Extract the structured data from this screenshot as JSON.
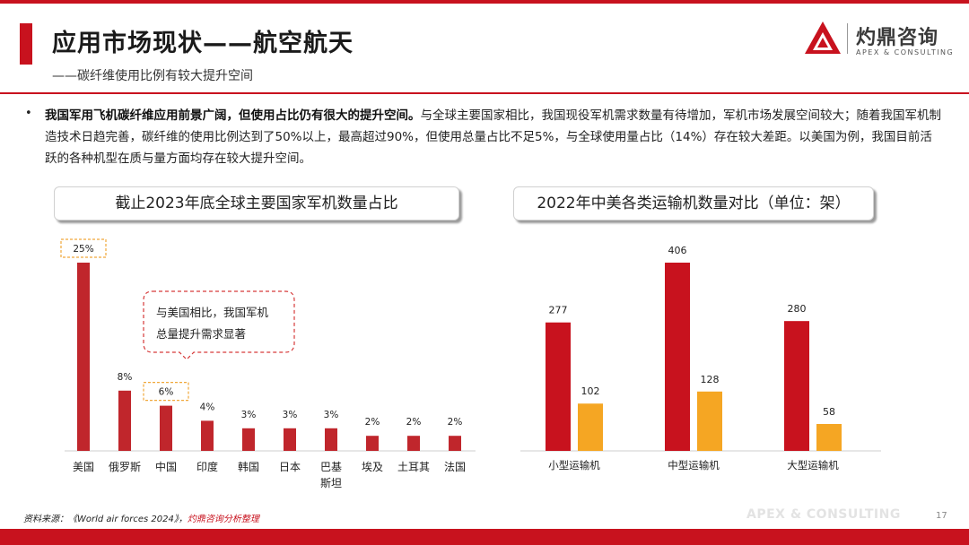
{
  "header": {
    "title": "应用市场现状——航空航天",
    "subtitle": "——碳纤维使用比例有较大提升空间"
  },
  "logo": {
    "name_cn": "灼鼎咨询",
    "name_en": "APEX & CONSULTING"
  },
  "bullet_text": {
    "bold": "我国军用飞机碳纤维应用前景广阔，但使用占比仍有很大的提升空间。",
    "normal": "与全球主要国家相比，我国现役军机需求数量有待增加，军机市场发展空间较大；随着我国军机制造技术日趋完善，碳纤维的使用比例达到了50%以上，最高超过90%，但使用总量占比不足5%，与全球使用量占比（14%）存在较大差距。以美国为例，我国目前活跃的各种机型在质与量方面均存在较大提升空间。"
  },
  "panels": {
    "left_title": "截止2023年底全球主要国家军机数量占比",
    "right_title": "2022年中美各类运输机数量对比（单位：架）"
  },
  "callout": {
    "text_line1": "与美国相比，我国军机",
    "text_line2": "总量提升需求显著"
  },
  "colors": {
    "red": "#c8121e",
    "bar_red": "#c0262c",
    "orange": "#f5a623",
    "callout_border": "#d63a3a",
    "highlight_border": "#f0a83a"
  },
  "chart_data": [
    {
      "type": "bar",
      "title": "截止2023年底全球主要国家军机数量占比",
      "categories": [
        "美国",
        "俄罗斯",
        "中国",
        "印度",
        "韩国",
        "日本",
        "巴基斯坦",
        "埃及",
        "土耳其",
        "法国"
      ],
      "values": [
        25,
        8,
        6,
        4,
        3,
        3,
        3,
        2,
        2,
        2
      ],
      "labels": [
        "25%",
        "8%",
        "6%",
        "4%",
        "3%",
        "3%",
        "3%",
        "2%",
        "2%",
        "2%"
      ],
      "highlighted": [
        "美国",
        "中国"
      ],
      "unit": "%",
      "ylim": [
        0,
        25
      ]
    },
    {
      "type": "bar",
      "title": "2022年中美各类运输机数量对比（单位：架）",
      "categories": [
        "小型运输机",
        "中型运输机",
        "大型运输机"
      ],
      "series": [
        {
          "values": [
            277,
            406,
            280
          ]
        },
        {
          "values": [
            102,
            128,
            58
          ]
        }
      ],
      "ylim": [
        0,
        406
      ]
    }
  ],
  "footer": {
    "source_prefix": "资料来源：《World air forces 2024》，",
    "source_org": "灼鼎咨询分析整理",
    "watermark": "APEX & CONSULTING",
    "page_number": "17"
  }
}
